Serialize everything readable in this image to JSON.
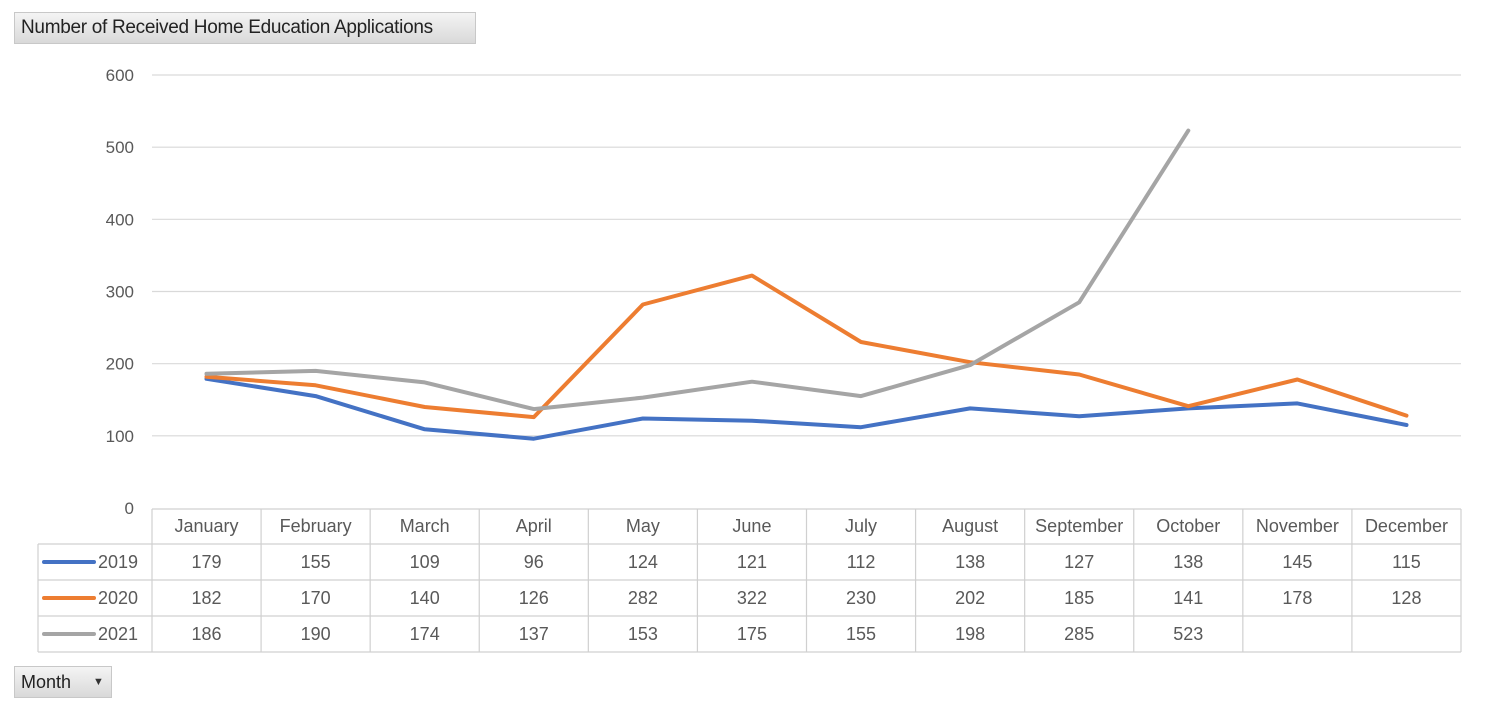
{
  "chart_title_button": "Number of Received Home Education Applications",
  "month_button": {
    "label": "Month",
    "icon": "dropdown-caret-icon"
  },
  "chart_data": {
    "type": "line",
    "title": "Number of Received Home Education Applications",
    "xlabel": "",
    "ylabel": "",
    "ylim": [
      0,
      600
    ],
    "yticks": [
      0,
      100,
      200,
      300,
      400,
      500,
      600
    ],
    "grid": true,
    "legend": "data-table",
    "categories": [
      "January",
      "February",
      "March",
      "April",
      "May",
      "June",
      "July",
      "August",
      "September",
      "October",
      "November",
      "December"
    ],
    "series": [
      {
        "name": "2019",
        "color": "#4472c4",
        "values": [
          179,
          155,
          109,
          96,
          124,
          121,
          112,
          138,
          127,
          138,
          145,
          115
        ]
      },
      {
        "name": "2020",
        "color": "#ed7d31",
        "values": [
          182,
          170,
          140,
          126,
          282,
          322,
          230,
          202,
          185,
          141,
          178,
          128
        ]
      },
      {
        "name": "2021",
        "color": "#a5a5a5",
        "values": [
          186,
          190,
          174,
          137,
          153,
          175,
          155,
          198,
          285,
          523,
          null,
          null
        ]
      }
    ]
  }
}
